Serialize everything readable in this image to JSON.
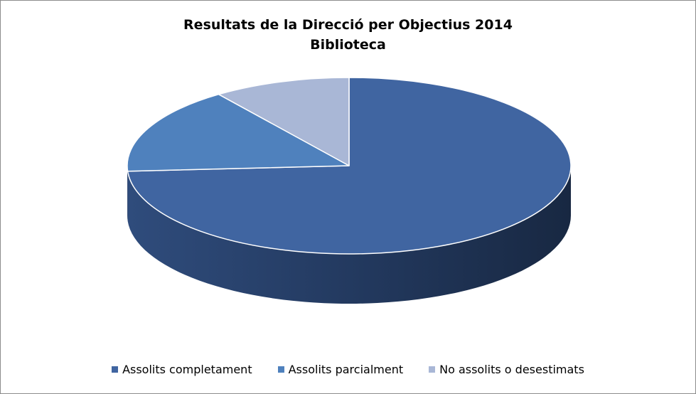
{
  "chart_data": {
    "type": "pie",
    "title": "Resultats de la Direcció per Objectius 2014",
    "subtitle": "Biblioteca",
    "three_d": true,
    "legend_position": "bottom",
    "series": [
      {
        "name": "Assolits completament",
        "value": 74,
        "color": "#4065A1",
        "side_color": "#2D4A78"
      },
      {
        "name": "Assolits parcialment",
        "value": 16,
        "color": "#4F81BD",
        "side_color": "#3A619A"
      },
      {
        "name": "No assolits o desestimats",
        "value": 10,
        "color": "#A9B7D6",
        "side_color": "#8291B4"
      }
    ]
  }
}
